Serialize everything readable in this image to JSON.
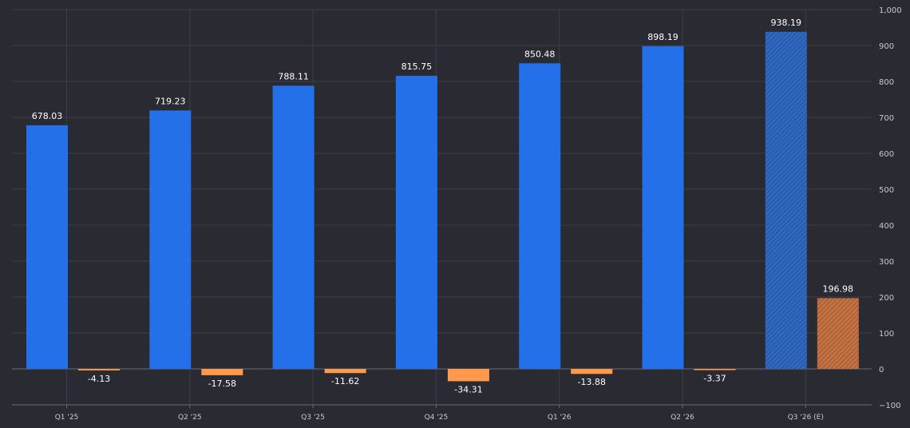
{
  "chart_data": {
    "type": "bar",
    "categories": [
      "Q1 '25",
      "Q2 '25",
      "Q3 '25",
      "Q4 '25",
      "Q1 '26",
      "Q2 '26",
      "Q3 '26 (E)"
    ],
    "series": [
      {
        "values": [
          678.03,
          719.23,
          788.11,
          815.75,
          850.48,
          898.19,
          938.19
        ],
        "value_labels": [
          "678.03",
          "719.23",
          "788.11",
          "815.75",
          "850.48",
          "898.19",
          "938.19"
        ],
        "color": "#2470e8",
        "estimate_color": "#2a5eb0"
      },
      {
        "values": [
          -4.13,
          -17.58,
          -11.62,
          -34.31,
          -13.88,
          -3.37,
          196.98
        ],
        "value_labels": [
          "-4.13",
          "-17.58",
          "-11.62",
          "-34.31",
          "-13.88",
          "-3.37",
          "196.98"
        ],
        "color": "#ff9a4d",
        "estimate_color": "#b3663a"
      }
    ],
    "estimated_index": 6,
    "ylim": [
      -100,
      1000
    ],
    "yticks": [
      -100,
      0,
      100,
      200,
      300,
      400,
      500,
      600,
      700,
      800,
      900,
      1000
    ],
    "ytick_labels": [
      "−100",
      "0",
      "100",
      "200",
      "300",
      "400",
      "500",
      "600",
      "700",
      "800",
      "900",
      "1,000"
    ],
    "grid": true,
    "y_axis_side": "right"
  },
  "colors": {
    "background": "#2a2a33",
    "grid": "#3d3d47",
    "text": "#ffffff",
    "tick_text": "#c8c8d0"
  }
}
